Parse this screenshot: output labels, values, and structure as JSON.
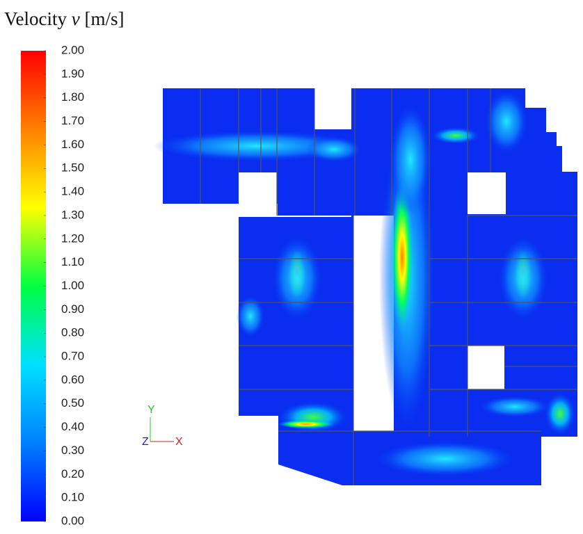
{
  "chart_data": {
    "type": "contour",
    "title": {
      "text": "Velocity",
      "symbol": "v",
      "unit": "[m/s]"
    },
    "clim": [
      0,
      2
    ],
    "colors": [
      "#0000ff",
      "#0080ff",
      "#00e0ff",
      "#00ff40",
      "#ffff00",
      "#ff8000",
      "#ff0000"
    ],
    "cticks": [
      {
        "value": 0,
        "label": "0.00"
      },
      {
        "value": 0.1,
        "label": "0.10"
      },
      {
        "value": 0.2,
        "label": "0.20"
      },
      {
        "value": 0.3,
        "label": "0.30"
      },
      {
        "value": 0.4,
        "label": "0.40"
      },
      {
        "value": 0.5,
        "label": "0.50"
      },
      {
        "value": 0.6,
        "label": "0.60"
      },
      {
        "value": 0.7,
        "label": "0.70"
      },
      {
        "value": 0.8,
        "label": "0.80"
      },
      {
        "value": 0.9,
        "label": "0.90"
      },
      {
        "value": 1,
        "label": "1.00"
      },
      {
        "value": 1.1,
        "label": "1.10"
      },
      {
        "value": 1.2,
        "label": "1.20"
      },
      {
        "value": 1.3,
        "label": "1.30"
      },
      {
        "value": 1.4,
        "label": "1.40"
      },
      {
        "value": 1.5,
        "label": "1.50"
      },
      {
        "value": 1.6,
        "label": "1.60"
      },
      {
        "value": 1.7,
        "label": "1.70"
      },
      {
        "value": 1.8,
        "label": "1.80"
      },
      {
        "value": 1.9,
        "label": "1.90"
      },
      {
        "value": 2,
        "label": "2.00"
      }
    ],
    "axes": {
      "y": "Y",
      "z": "Z",
      "x": "X"
    }
  }
}
